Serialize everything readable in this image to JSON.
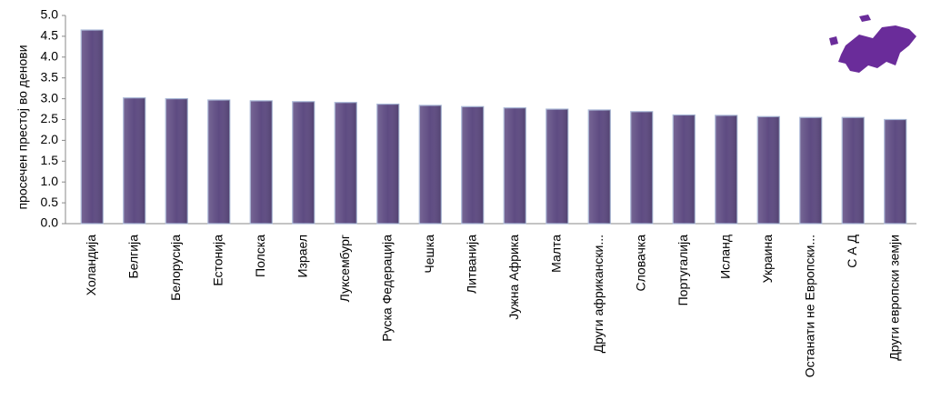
{
  "chart_data": {
    "type": "bar",
    "y_axis_label": "просечен престој во денови",
    "categories": [
      "Холандија",
      "Белгија",
      "Белорусија",
      "Естонија",
      "Полска",
      "Израел",
      "Луксембург",
      "Руска Федерација",
      "Чешка",
      "Литванија",
      "Јужна Африка",
      "Малта",
      "Други африкански...",
      "Словачка",
      "Португалија",
      "Исланд",
      "Украина",
      "Останати не Европски...",
      "С А Д",
      "Други европски земји"
    ],
    "values": [
      4.65,
      3.02,
      3.0,
      2.97,
      2.95,
      2.93,
      2.91,
      2.87,
      2.84,
      2.81,
      2.78,
      2.75,
      2.73,
      2.69,
      2.61,
      2.6,
      2.57,
      2.55,
      2.55,
      2.5
    ],
    "color": "#5e4b82",
    "ylim": [
      0,
      5
    ],
    "yticks": [
      {
        "value": 0,
        "label": "0.0"
      },
      {
        "value": 0.5,
        "label": "0.5"
      },
      {
        "value": 1,
        "label": "1.0"
      },
      {
        "value": 1.5,
        "label": "1.5"
      },
      {
        "value": 2,
        "label": "2.0"
      },
      {
        "value": 2.5,
        "label": "2.5"
      },
      {
        "value": 3,
        "label": "3.0"
      },
      {
        "value": 3.5,
        "label": "3.5"
      },
      {
        "value": 4,
        "label": "4.0"
      },
      {
        "value": 4.5,
        "label": "4.5"
      },
      {
        "value": 5,
        "label": "5.0"
      }
    ],
    "grid": false
  }
}
